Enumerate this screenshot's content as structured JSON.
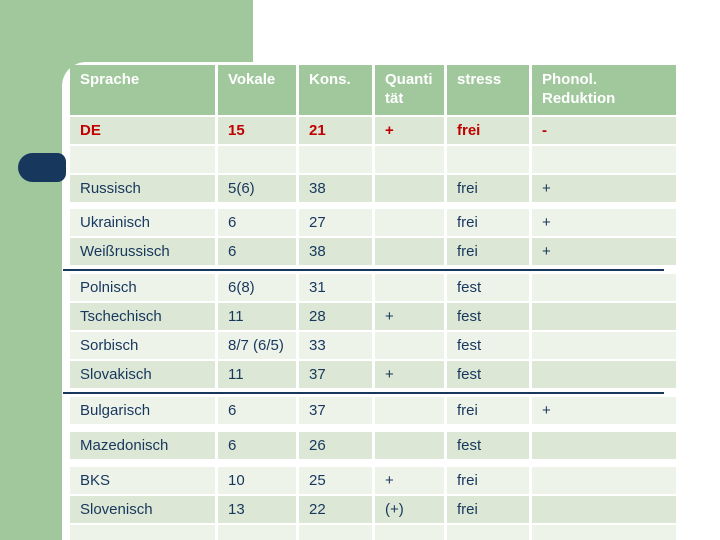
{
  "slide": {
    "kind": "presentation-slide-table",
    "colors": {
      "accent_green": "#a0c89c",
      "accent_navy": "#17375d",
      "row_shade_dark": "#dce8d5",
      "row_shade_light": "#eef3ea",
      "header_text": "#ffffff",
      "body_text": "#17375d",
      "highlight_text": "#c00000",
      "background": "#ffffff"
    }
  },
  "table": {
    "headers": [
      "Sprache",
      "Vokale",
      "Kons.",
      "Quanti\ntät",
      "stress",
      "Phonol.\nReduktion"
    ],
    "column_keys": [
      "sprache",
      "vokale",
      "kons",
      "quantitaet",
      "stress",
      "phonol-reduktion"
    ],
    "rows": [
      {
        "cells": [
          "DE",
          "15",
          "21",
          "+",
          "frei",
          "-"
        ],
        "shade": "dark",
        "text_color": "red"
      },
      {
        "cells": [
          "",
          "",
          "",
          "",
          "",
          ""
        ],
        "shade": "light"
      },
      {
        "cells": [
          "Russisch",
          "5(6)",
          "38",
          "",
          "frei",
          "+"
        ],
        "shade": "dark",
        "gap_after": 5
      },
      {
        "cells": [
          "Ukrainisch",
          "6",
          "27",
          "",
          "frei",
          "+"
        ],
        "shade": "light"
      },
      {
        "cells": [
          "Weißrussisch",
          "6",
          "38",
          "",
          "frei",
          "+"
        ],
        "shade": "dark",
        "divider_after": true
      },
      {
        "cells": [
          "Polnisch",
          "6(8)",
          "31",
          "",
          "fest",
          ""
        ],
        "shade": "light"
      },
      {
        "cells": [
          "Tschechisch",
          "11",
          "28",
          "+",
          "fest",
          ""
        ],
        "shade": "dark"
      },
      {
        "cells": [
          "Sorbisch",
          "8/7 (6/5)",
          "33",
          "",
          "fest",
          ""
        ],
        "shade": "light"
      },
      {
        "cells": [
          "Slovakisch",
          "11",
          "37",
          "+",
          "fest",
          ""
        ],
        "shade": "dark",
        "divider_after": true
      },
      {
        "cells": [
          "Bulgarisch",
          "6",
          "37",
          "",
          "frei",
          "+"
        ],
        "shade": "light",
        "gap_after": 6
      },
      {
        "cells": [
          "Mazedonisch",
          "6",
          "26",
          "",
          "fest",
          ""
        ],
        "shade": "dark",
        "gap_after": 6
      },
      {
        "cells": [
          "BKS",
          "10",
          "25",
          "+",
          "frei",
          ""
        ],
        "shade": "light"
      },
      {
        "cells": [
          "Slovenisch",
          "13",
          "22",
          "(+)",
          "frei",
          ""
        ],
        "shade": "dark"
      },
      {
        "cells": [
          "",
          "",
          "",
          "",
          "",
          ""
        ],
        "shade": "light"
      }
    ]
  }
}
